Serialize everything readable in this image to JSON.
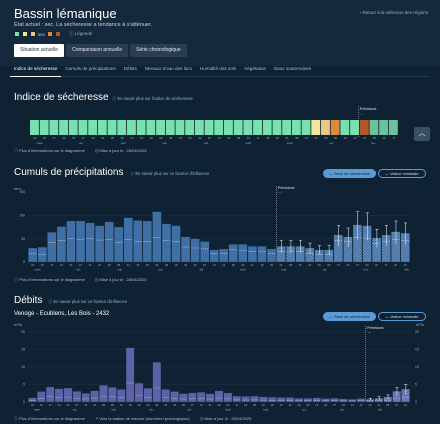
{
  "header": {
    "title": "Bassin lémanique",
    "back_link": "Retour à la sélection des régions",
    "state": "État actuel : sec. La sécheresse a tendance à s'atténuer.",
    "legend_label_sec": "sec",
    "legend_link": "Légende",
    "legend_colors": [
      "#79e0b0",
      "#f3e59a",
      "#e9c98a",
      "#df8a3a",
      "#b4582a"
    ],
    "legend_icon": "info-circle-icon"
  },
  "views": [
    "Situation actuelle",
    "Comparaison annuelle",
    "Série chronologique"
  ],
  "tabs": [
    "Indice de sécheresse",
    "Cumuls de précipitations",
    "Débits",
    "Niveaux d'eau des lacs",
    "Humidité des sols",
    "Végétation",
    "Eaux souterraines"
  ],
  "common": {
    "previsions": "Prévisions",
    "forecast_arrow": "→",
    "more_info": "Plus d'informations sur le diagramme",
    "updated": "Mise à jour le : 28/04/2025",
    "months": [
      "mars",
      "avr.",
      "mai",
      "juin",
      "juil.",
      "août",
      "sept.",
      "oct.",
      "nov.",
      "déc.",
      "janv.",
      "févr.",
      "mars",
      "avr.",
      "mai"
    ],
    "days": [
      "03",
      "10",
      "17",
      "24",
      "31",
      "07",
      "14",
      "21",
      "28",
      "05",
      "12",
      "19",
      "26",
      "02",
      "09",
      "16",
      "23",
      "30",
      "07",
      "14",
      "21",
      "28",
      "04",
      "11",
      "18",
      "25",
      "01",
      "08",
      "15",
      "22",
      "29",
      "06",
      "13",
      "20",
      "27",
      "03",
      "10",
      "17",
      "24",
      "01",
      "08",
      "15",
      "22",
      "29",
      "05",
      "12",
      "19",
      "26",
      "02",
      "09",
      "16",
      "23",
      "02",
      "09",
      "16",
      "23",
      "30",
      "06",
      "13",
      "20",
      "27",
      "04",
      "11",
      "18"
    ]
  },
  "indice": {
    "title": "Indice de sécheresse",
    "link": "En savoir plus sur l'indice de sécheresse",
    "colors": {
      "0": "#79e0b0",
      "1": "#f3e59a",
      "2": "#e9c98a",
      "3": "#df8a3a",
      "4": "#b4582a",
      "forecast_fill": "#79e0b0"
    },
    "levels": [
      0,
      0,
      0,
      0,
      0,
      0,
      0,
      0,
      0,
      0,
      0,
      0,
      0,
      0,
      0,
      0,
      0,
      0,
      0,
      0,
      0,
      0,
      0,
      0,
      0,
      0,
      0,
      0,
      0,
      1,
      2,
      3,
      0,
      0,
      4,
      0,
      0,
      0
    ],
    "forecast_start_index": 34
  },
  "precip": {
    "title": "Cumuls de précipitations",
    "link": "En savoir plus sur ce facteur d'influence",
    "pill_on": "Seuil de sécheresse",
    "pill_off": "Valeur minimale",
    "ylabel": "mm",
    "yticks": [
      "150",
      "100",
      "50",
      "0"
    ],
    "ymax": 150
  },
  "debits": {
    "title": "Débits",
    "link": "En savoir plus sur ce facteur d'influence",
    "station": "Venoge - Ecublens, Les Bois - 2432",
    "pill_on": "Seuil de sécheresse",
    "pill_off": "Valeur minimale",
    "ylabel_left": "m³/s",
    "ylabel_right": "m³/s",
    "yticks": [
      "20",
      "15",
      "10",
      "5",
      "0"
    ],
    "ymax": 20,
    "station_link": "Vers la station de mesure (données hydrologiques)"
  },
  "chart_data": [
    {
      "type": "bar",
      "title": "Cumuls de précipitations",
      "ylabel": "mm",
      "ylim": [
        0,
        150
      ],
      "forecast_start_index": 26,
      "series": [
        {
          "name": "Cumuls de précipitations",
          "values": [
            30,
            32,
            64,
            76,
            88,
            88,
            84,
            78,
            86,
            75,
            95,
            89,
            88,
            108,
            82,
            78,
            54,
            50,
            44,
            26,
            28,
            38,
            38,
            34,
            34,
            28,
            34,
            34,
            34,
            30,
            26,
            26,
            58,
            54,
            80,
            78,
            52,
            58,
            65,
            62
          ]
        },
        {
          "name": "Seuil de sécheresse",
          "values": [
            18,
            16,
            42,
            46,
            50,
            48,
            50,
            47,
            48,
            42,
            48,
            44,
            44,
            52,
            46,
            44,
            32,
            30,
            28,
            18,
            18,
            26,
            24,
            22,
            22,
            18,
            22,
            22,
            22,
            18,
            16,
            16,
            46,
            44,
            52,
            50,
            40,
            44,
            48,
            46
          ]
        }
      ]
    },
    {
      "type": "bar",
      "title": "Venoge - Ecublens, Les Bois - 2432",
      "ylabel": "m³/s",
      "ylim": [
        0,
        20
      ],
      "forecast_start_index": 38,
      "series": [
        {
          "name": "Débits",
          "values": [
            1.2,
            3.0,
            4.3,
            3.8,
            4.0,
            3.1,
            2.5,
            3.2,
            4.8,
            4.2,
            3.6,
            15.5,
            5.4,
            3.9,
            11.4,
            3.6,
            3.0,
            2.4,
            2.6,
            2.8,
            2.4,
            3.2,
            2.6,
            1.7,
            1.6,
            1.7,
            1.5,
            1.4,
            1.3,
            1.3,
            1.1,
            1.1,
            1.2,
            1.0,
            1.1,
            0.9,
            0.8,
            1.0,
            0.8,
            1.1,
            1.5,
            3.1,
            3.7
          ]
        }
      ]
    }
  ]
}
